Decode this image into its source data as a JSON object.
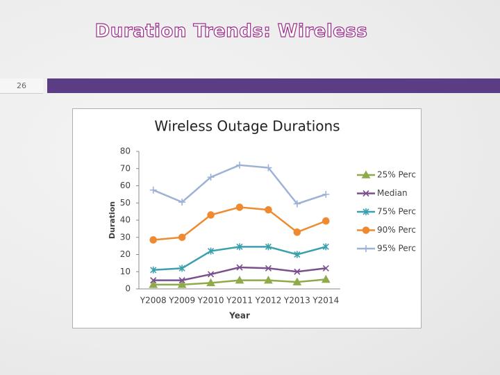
{
  "slide": {
    "title": "Duration Trends: Wireless",
    "number": "26"
  },
  "chart_data": {
    "type": "line",
    "title": "Wireless Outage Durations",
    "x_label": "Year",
    "y_label": "Duration",
    "categories": [
      "Y2008",
      "Y2009",
      "Y2010",
      "Y2011",
      "Y2012",
      "Y2013",
      "Y2014"
    ],
    "series": [
      {
        "name": "25% Perc",
        "color": "#8faa4a",
        "marker": "triangle",
        "values": [
          2.5,
          2.5,
          3.5,
          5,
          5,
          4,
          5.5
        ]
      },
      {
        "name": "Median",
        "color": "#7a4f8e",
        "marker": "x",
        "values": [
          5,
          5,
          8.5,
          12.5,
          12,
          10,
          12
        ]
      },
      {
        "name": "75% Perc",
        "color": "#3aa0ad",
        "marker": "star",
        "values": [
          11,
          12,
          22,
          24.5,
          24.5,
          20,
          24.5
        ]
      },
      {
        "name": "90% Perc",
        "color": "#f08a30",
        "marker": "circle",
        "values": [
          28.5,
          30,
          43,
          47.5,
          46,
          33,
          39.5
        ]
      },
      {
        "name": "95% Perc",
        "color": "#9db3d6",
        "marker": "plus",
        "values": [
          57.5,
          50.5,
          65,
          72,
          70.5,
          49.5,
          55
        ]
      }
    ],
    "ylim": [
      0,
      80
    ],
    "yticks": [
      0,
      10,
      20,
      30,
      40,
      50,
      60,
      70,
      80
    ],
    "grid": false,
    "legend": "right"
  }
}
